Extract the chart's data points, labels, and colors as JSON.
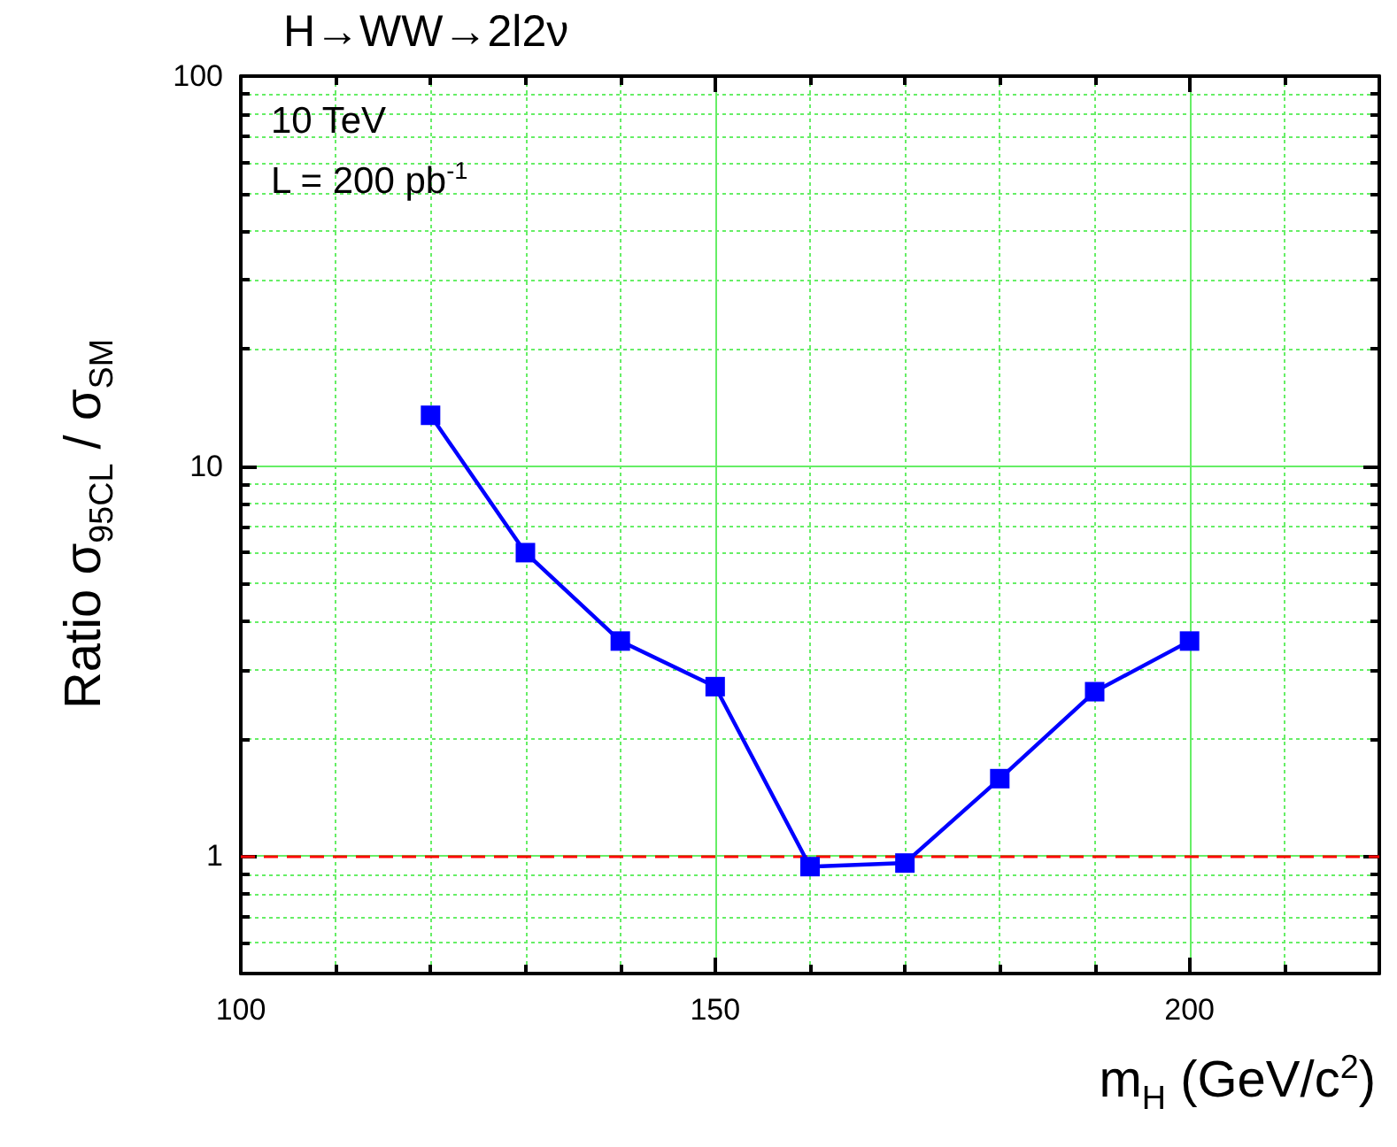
{
  "chart_data": {
    "type": "line",
    "title": "H→WW→2l2ν",
    "xlabel": "m$_{H}$ (GeV/c$^{2}$)",
    "ylabel": "Ratio  σ$_{95CL}$ / σ$_{SM}$",
    "annotations": [
      "10 TeV",
      "L = 200 pb$^{-1}$"
    ],
    "x": [
      120,
      130,
      140,
      150,
      160,
      170,
      180,
      190,
      200
    ],
    "series": [
      {
        "color": "#0000ff",
        "values": [
          13.5,
          6.0,
          3.56,
          2.72,
          0.94,
          0.96,
          1.58,
          2.64,
          3.56
        ]
      }
    ],
    "marker": "square",
    "line_style": "solid",
    "log": "y",
    "grid": true,
    "xlim": [
      100,
      220
    ],
    "xticks": [
      100,
      {
        "value": 110,
        "label": null
      },
      {
        "value": 120,
        "label": null
      },
      {
        "value": 130,
        "label": null
      },
      {
        "value": 140,
        "label": null
      },
      150,
      {
        "value": 160,
        "label": null
      },
      {
        "value": 170,
        "label": null
      },
      {
        "value": 180,
        "label": null
      },
      {
        "value": 190,
        "label": null
      },
      200,
      {
        "value": 210,
        "label": null
      }
    ],
    "ylim": [
      0.5,
      100
    ],
    "yticks": [
      {
        "value": 0.6,
        "label": null
      },
      {
        "value": 0.7,
        "label": null
      },
      {
        "value": 0.8,
        "label": null
      },
      {
        "value": 0.9,
        "label": null
      },
      1,
      {
        "value": 2,
        "label": null
      },
      {
        "value": 3,
        "label": null
      },
      {
        "value": 4,
        "label": null
      },
      {
        "value": 5,
        "label": null
      },
      {
        "value": 6,
        "label": null
      },
      {
        "value": 7,
        "label": null
      },
      {
        "value": 8,
        "label": null
      },
      {
        "value": 9,
        "label": null
      },
      10,
      {
        "value": 20,
        "label": null
      },
      {
        "value": 30,
        "label": null
      },
      {
        "value": 40,
        "label": null
      },
      {
        "value": 50,
        "label": null
      },
      {
        "value": 60,
        "label": null
      },
      {
        "value": 70,
        "label": null
      },
      {
        "value": 80,
        "label": null
      },
      {
        "value": 90,
        "label": null
      },
      100
    ],
    "ref_lines": [
      {
        "axis": "y",
        "value": 1,
        "color": "#ff0000",
        "line_style": "dashed"
      }
    ]
  }
}
